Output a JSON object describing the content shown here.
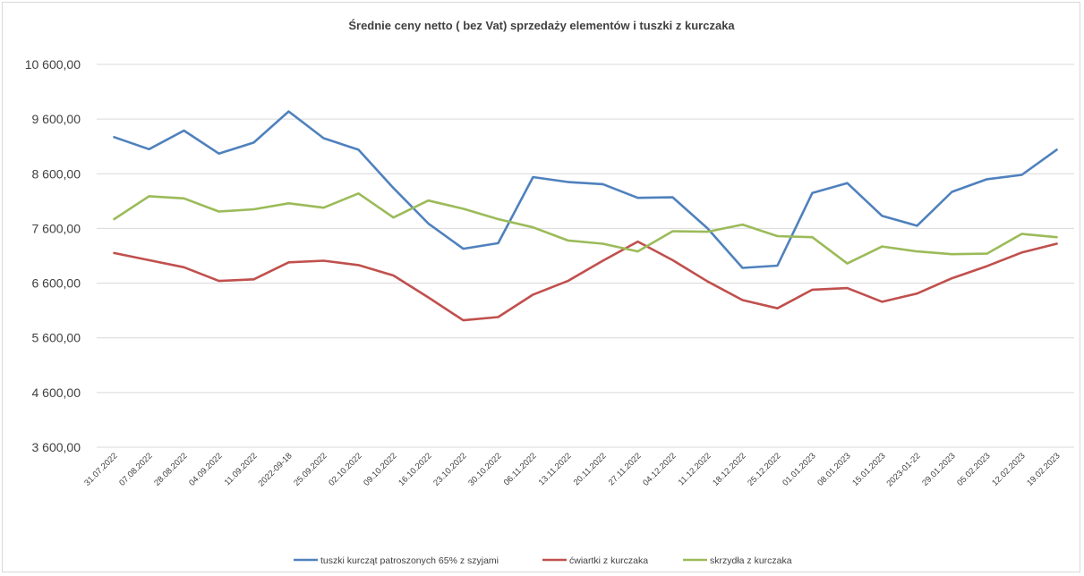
{
  "chart_data": {
    "type": "line",
    "title": "Średnie ceny netto ( bez Vat) sprzedaży elementów i tuszki z kurczaka",
    "xlabel": "",
    "ylabel": "",
    "ylim": [
      3600,
      10600
    ],
    "yticks": [
      3600,
      4600,
      5600,
      6600,
      7600,
      8600,
      9600,
      10600
    ],
    "ytick_labels": [
      "3 600,00",
      "4 600,00",
      "5 600,00",
      "6 600,00",
      "7 600,00",
      "8 600,00",
      "9 600,00",
      "10 600,00"
    ],
    "grid": true,
    "legend": "bottom",
    "categories": [
      "31.07.2022",
      "07.08.2022",
      "28.08.2022",
      "04.09.2022",
      "11.09.2022",
      "2022-09-18",
      "25.09.2022",
      "02.10.2022",
      "09.10.2022",
      "16.10.2022",
      "23.10.2022",
      "30.10.2022",
      "06.11.2022",
      "13.11.2022",
      "20.11.2022",
      "27.11.2022",
      "04.12.2022",
      "11.12.2022",
      "18.12.2022",
      "25.12.2022",
      "01.01.2023",
      "08.01.2023",
      "15.01.2023",
      "2023-01-22",
      "29.01.2023",
      "05.02.2023",
      "12.02.2023",
      "19.02.2023"
    ],
    "series": [
      {
        "name": "tuszki kurcząt patroszonych 65% z szyjami",
        "color": "#4f81bd",
        "values": [
          9270,
          9050,
          9390,
          8970,
          9170,
          9740,
          9250,
          9040,
          8340,
          7690,
          7230,
          7330,
          8540,
          8450,
          8410,
          8160,
          8170,
          7600,
          6880,
          6920,
          8250,
          8430,
          7830,
          7650,
          8270,
          8500,
          8580,
          9040
        ]
      },
      {
        "name": "ćwiartki z kurczaka",
        "color": "#c0504d",
        "values": [
          7150,
          7020,
          6890,
          6640,
          6670,
          6980,
          7010,
          6930,
          6740,
          6340,
          5920,
          5980,
          6390,
          6640,
          7010,
          7360,
          7020,
          6630,
          6290,
          6140,
          6480,
          6510,
          6260,
          6410,
          6690,
          6910,
          7160,
          7320
        ]
      },
      {
        "name": "skrzydła z kurczaka",
        "color": "#9bbb59",
        "values": [
          7770,
          8190,
          8150,
          7910,
          7950,
          8060,
          7980,
          8240,
          7800,
          8110,
          7960,
          7770,
          7620,
          7380,
          7320,
          7180,
          7550,
          7540,
          7670,
          7460,
          7440,
          6960,
          7270,
          7180,
          7130,
          7140,
          7500,
          7440
        ]
      }
    ]
  }
}
